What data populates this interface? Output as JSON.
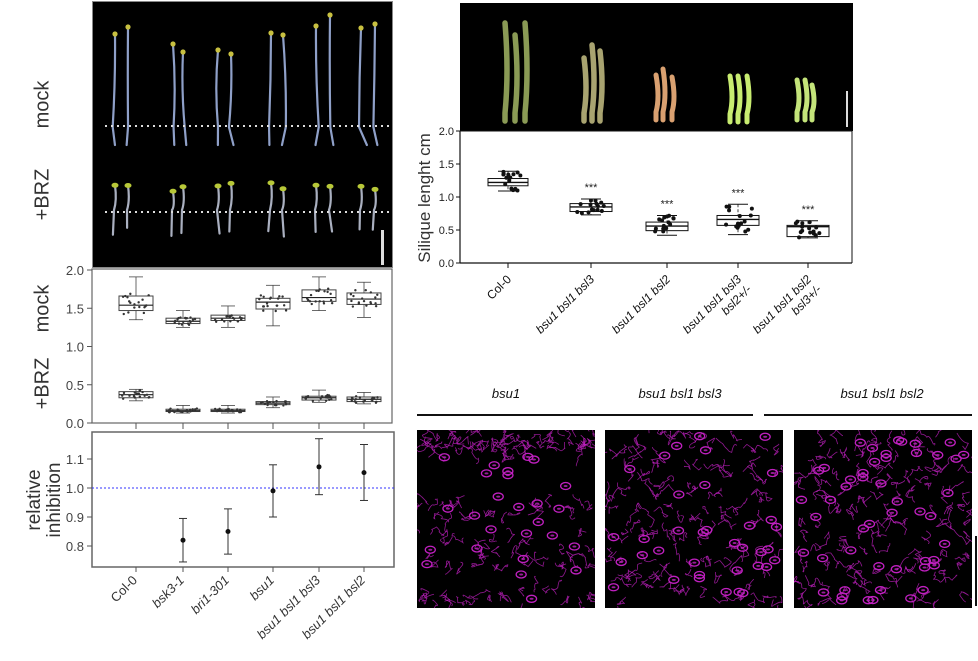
{
  "seedling_panel": {
    "row_labels": [
      "mock",
      "+BRZ"
    ],
    "scale_bar": true
  },
  "silique_panel": {
    "scale_bar": true,
    "silique_colors": [
      "#8a9a55",
      "#a8a370",
      "#d9a070",
      "#c8ec70",
      "#c4e47a"
    ]
  },
  "confocal_panel": {
    "titles": [
      "bsu1",
      "bsu1 bsl1 bsl3",
      "bsu1 bsl1 bsl2"
    ],
    "stain_color": "#c020c0"
  },
  "chart_data": [
    {
      "type": "box",
      "title": "",
      "ylabel_top": "mock",
      "ylabel_bottom": "+BRZ",
      "ylim": [
        0.0,
        2.0
      ],
      "yticks": [
        "0.0",
        "0.5",
        "1.0",
        "1.5",
        "2.0"
      ],
      "categories": [
        "Col-0",
        "bsk3-1",
        "bri1-301",
        "bsu1",
        "bsu1 bsl1 bsl3",
        "bsu1 bsl1 bsl2"
      ],
      "series": [
        {
          "name": "mock",
          "boxes": [
            {
              "min": 1.35,
              "q1": 1.47,
              "median": 1.54,
              "q3": 1.66,
              "max": 1.91
            },
            {
              "min": 1.25,
              "q1": 1.3,
              "median": 1.33,
              "q3": 1.37,
              "max": 1.47
            },
            {
              "min": 1.25,
              "q1": 1.34,
              "median": 1.37,
              "q3": 1.41,
              "max": 1.53
            },
            {
              "min": 1.27,
              "q1": 1.49,
              "median": 1.58,
              "q3": 1.63,
              "max": 1.8
            },
            {
              "min": 1.47,
              "q1": 1.59,
              "median": 1.64,
              "q3": 1.74,
              "max": 1.91
            },
            {
              "min": 1.38,
              "q1": 1.55,
              "median": 1.62,
              "q3": 1.7,
              "max": 1.84
            }
          ]
        },
        {
          "name": "+BRZ",
          "boxes": [
            {
              "min": 0.29,
              "q1": 0.33,
              "median": 0.37,
              "q3": 0.41,
              "max": 0.44
            },
            {
              "min": 0.13,
              "q1": 0.15,
              "median": 0.16,
              "q3": 0.18,
              "max": 0.23
            },
            {
              "min": 0.13,
              "q1": 0.15,
              "median": 0.16,
              "q3": 0.18,
              "max": 0.23
            },
            {
              "min": 0.2,
              "q1": 0.24,
              "median": 0.26,
              "q3": 0.28,
              "max": 0.34
            },
            {
              "min": 0.27,
              "q1": 0.3,
              "median": 0.33,
              "q3": 0.35,
              "max": 0.43
            },
            {
              "min": 0.25,
              "q1": 0.28,
              "median": 0.31,
              "q3": 0.34,
              "max": 0.4
            }
          ]
        }
      ]
    },
    {
      "type": "errorbar",
      "ylabel": [
        "relative",
        "inhibition"
      ],
      "ylim": [
        0.73,
        1.19
      ],
      "yticks": [
        "0.8",
        "0.9",
        "1.0",
        "1.1"
      ],
      "reference_line": 1.0,
      "reference_color": "#3333ff",
      "categories": [
        "Col-0",
        "bsk3-1",
        "bri1-301",
        "bsu1",
        "bsu1 bsl1 bsl3",
        "bsu1 bsl1 bsl2"
      ],
      "points": [
        null,
        {
          "mean": 0.82,
          "low": 0.745,
          "high": 0.895
        },
        {
          "mean": 0.85,
          "low": 0.772,
          "high": 0.928
        },
        {
          "mean": 0.99,
          "low": 0.9,
          "high": 1.08
        },
        {
          "mean": 1.073,
          "low": 0.977,
          "high": 1.17
        },
        {
          "mean": 1.053,
          "low": 0.957,
          "high": 1.15
        }
      ]
    },
    {
      "type": "box",
      "ylabel": "Silique lenght cm",
      "ylim": [
        0.0,
        2.0
      ],
      "yticks": [
        "0.0",
        "0.5",
        "1.0",
        "1.5",
        "2.0"
      ],
      "categories": [
        "Col-0",
        "bsu1 bsl1 bsl3",
        "bsu1 bsl1 bsl2",
        "bsu1 bsl1 bsl3 bsl2+/-",
        "bsu1 bsl1 bsl2 bsl3+/-"
      ],
      "category_lines": [
        [
          "Col-0"
        ],
        [
          "bsu1 bsl1 bsl3"
        ],
        [
          "bsu1 bsl1 bsl2"
        ],
        [
          "bsu1 bsl1 bsl3",
          "bsl2+/-"
        ],
        [
          "bsu1 bsl1 bsl2",
          "bsl3+/-"
        ]
      ],
      "significance": [
        "",
        "***",
        "***",
        "***",
        "***"
      ],
      "boxes": [
        {
          "min": 1.09,
          "q1": 1.17,
          "median": 1.22,
          "q3": 1.28,
          "max": 1.39
        },
        {
          "min": 0.73,
          "q1": 0.78,
          "median": 0.85,
          "q3": 0.9,
          "max": 0.97
        },
        {
          "min": 0.42,
          "q1": 0.49,
          "median": 0.56,
          "q3": 0.62,
          "max": 0.72
        },
        {
          "min": 0.43,
          "q1": 0.57,
          "median": 0.66,
          "q3": 0.72,
          "max": 0.89
        },
        {
          "min": 0.38,
          "q1": 0.4,
          "median": 0.55,
          "q3": 0.57,
          "max": 0.64
        }
      ]
    }
  ]
}
